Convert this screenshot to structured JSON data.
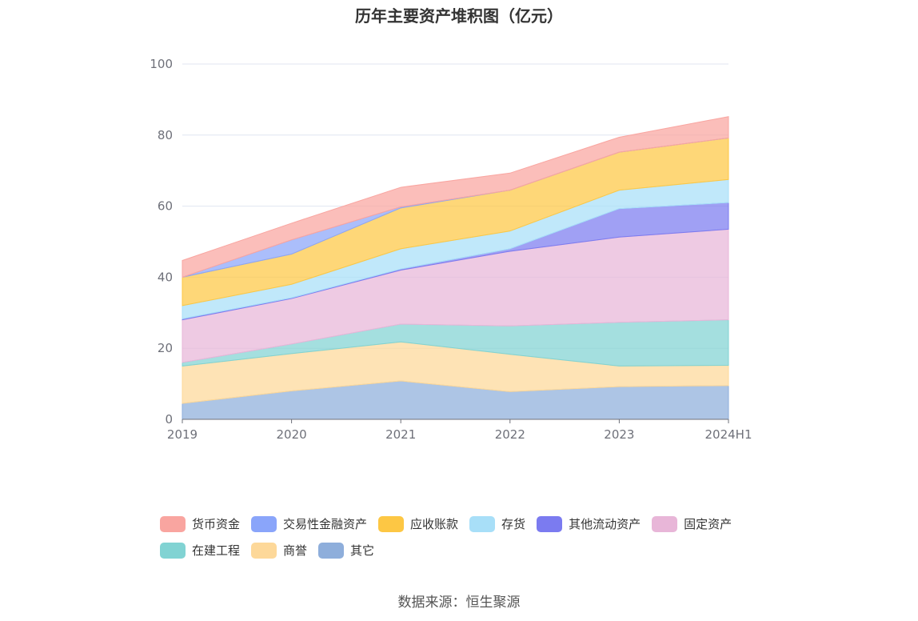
{
  "chart_data": {
    "type": "area",
    "stacked": true,
    "title": "历年主要资产堆积图（亿元）",
    "categories": [
      "2019",
      "2020",
      "2021",
      "2022",
      "2023",
      "2024H1"
    ],
    "ylim": [
      0,
      100
    ],
    "yticks": [
      "0",
      "20",
      "40",
      "60",
      "80",
      "100"
    ],
    "grid": true,
    "legend_position": "bottom",
    "series": [
      {
        "name": "其它",
        "color": "#8eaedb",
        "values": [
          4.5,
          8,
          10.8,
          7.8,
          9.2,
          9.5
        ]
      },
      {
        "name": "商誉",
        "color": "#fdd899",
        "values": [
          10.5,
          10.5,
          11,
          10.5,
          5.8,
          5.7
        ]
      },
      {
        "name": "在建工程",
        "color": "#81d3d3",
        "values": [
          1,
          2.7,
          5,
          8,
          12.3,
          12.8
        ]
      },
      {
        "name": "固定资产",
        "color": "#e8b6d8",
        "values": [
          12,
          12.8,
          15.2,
          21,
          24,
          25.5
        ]
      },
      {
        "name": "其他流动资产",
        "color": "#7b7bf0",
        "values": [
          0.3,
          0.2,
          0.3,
          0.7,
          8,
          7.5
        ]
      },
      {
        "name": "存货",
        "color": "#a8dff8",
        "values": [
          3.7,
          3.8,
          5.7,
          5,
          5.2,
          6.5
        ]
      },
      {
        "name": "应收账款",
        "color": "#fdc744",
        "values": [
          8,
          8.5,
          11.5,
          11.5,
          10.7,
          11.7
        ]
      },
      {
        "name": "交易性金融资产",
        "color": "#8aa5fa",
        "values": [
          0,
          4,
          0.3,
          0,
          0,
          0
        ]
      },
      {
        "name": "货币资金",
        "color": "#f9a5a0",
        "values": [
          4.7,
          4.7,
          5.5,
          4.8,
          4.2,
          6
        ]
      }
    ],
    "legend_order": [
      "货币资金",
      "交易性金融资产",
      "应收账款",
      "存货",
      "其他流动资产",
      "固定资产",
      "在建工程",
      "商誉",
      "其它"
    ]
  },
  "footer": {
    "source": "数据来源：恒生聚源"
  }
}
